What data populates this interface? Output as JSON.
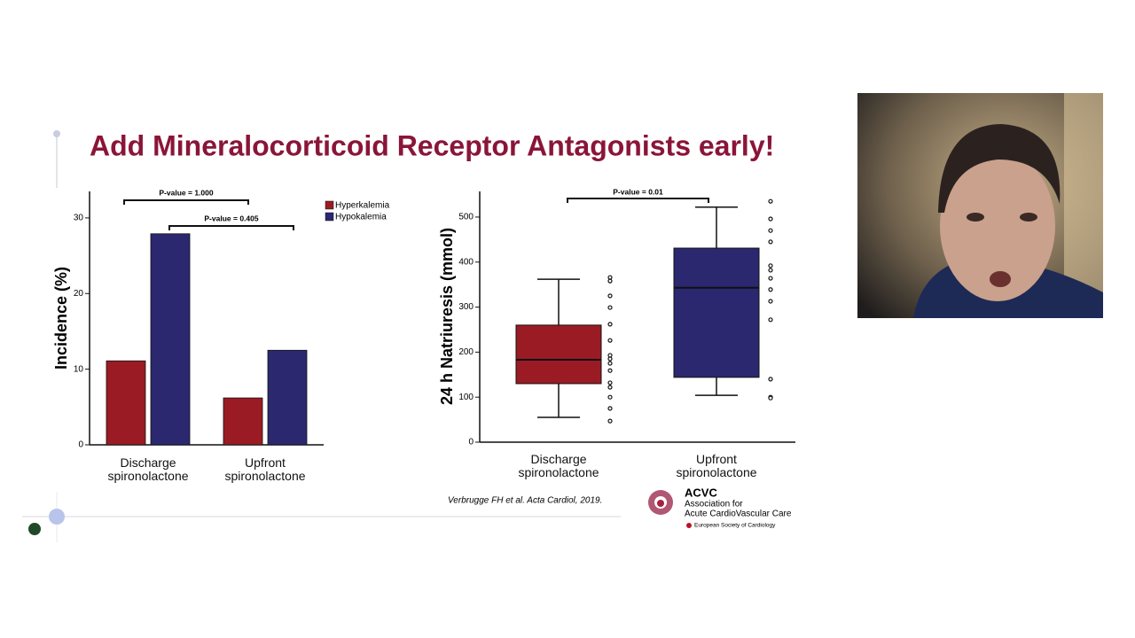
{
  "slide": {
    "title": "Add Mineralocorticoid Receptor Antagonists early!",
    "citation": "Verbrugge FH et al. Acta Cardiol, 2019.",
    "logo": {
      "acronym": "ACVC",
      "line1": "Association for",
      "line2": "Acute CardioVascular Care",
      "society": "European Society of Cardiology"
    }
  },
  "chart_data": [
    {
      "type": "bar",
      "ylabel": "Incidence (%)",
      "categories": [
        "Discharge spironolactone",
        "Upfront spironolactone"
      ],
      "series": [
        {
          "name": "Hyperkalemia",
          "color": "#9b1b24",
          "values": [
            11.1,
            6.2
          ]
        },
        {
          "name": "Hypokalemia",
          "color": "#2b2870",
          "values": [
            27.9,
            12.5
          ]
        }
      ],
      "ylim": [
        0,
        33.5
      ],
      "yticks": [
        0,
        10,
        20,
        30
      ],
      "legend": "top-right",
      "annotations": [
        "P-value = 1.000",
        "P-value = 0.405"
      ]
    },
    {
      "type": "box",
      "ylabel": "24 h Natriuresis (mmol)",
      "categories": [
        "Discharge spironolactone",
        "Upfront spironolactone"
      ],
      "colors": [
        "#9b1b24",
        "#2b2870"
      ],
      "boxes": [
        {
          "min": 55,
          "q1": 130,
          "median": 183,
          "q3": 260,
          "max": 362,
          "outliers": [
            366,
            358,
            325,
            299,
            262,
            226,
            193,
            185,
            175,
            159,
            132,
            122,
            100,
            75,
            47
          ]
        },
        {
          "min": 104,
          "q1": 144,
          "median": 343,
          "q3": 431,
          "max": 522,
          "outliers": [
            535,
            496,
            470,
            445,
            392,
            382,
            364,
            339,
            313,
            272,
            140,
            100,
            98
          ]
        }
      ],
      "ylim": [
        0,
        557
      ],
      "yticks": [
        0,
        100,
        200,
        300,
        400,
        500
      ],
      "annotations": [
        "P-value = 0.01"
      ]
    }
  ]
}
